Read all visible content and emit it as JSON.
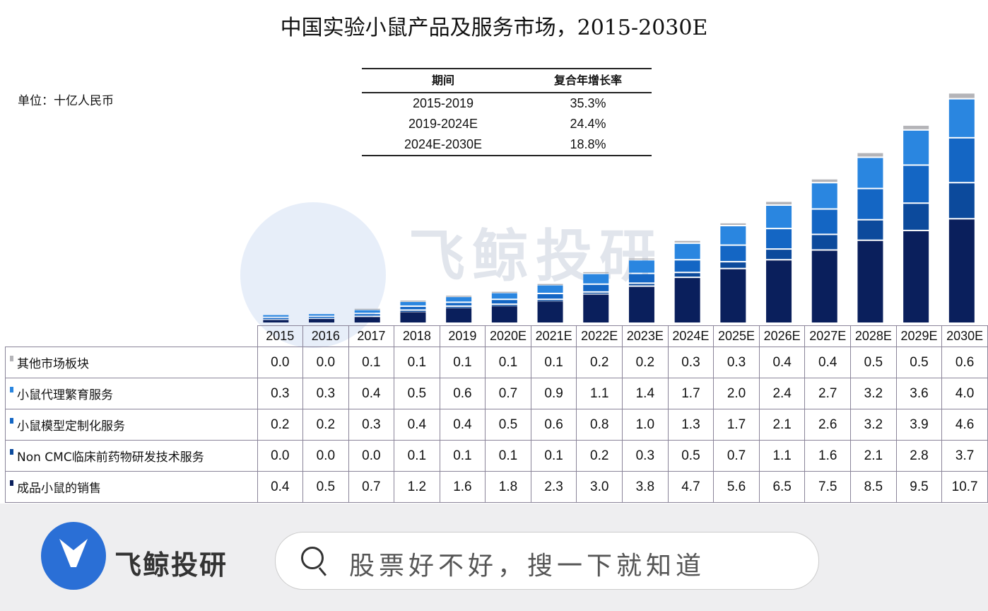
{
  "chart_data": {
    "type": "bar",
    "stacked": true,
    "title": "中国实验小鼠产品及服务市场，2015-2030E",
    "unit_label": "单位：十亿人民币",
    "categories": [
      "2015",
      "2016",
      "2017",
      "2018",
      "2019",
      "2020E",
      "2021E",
      "2022E",
      "2023E",
      "2024E",
      "2025E",
      "2026E",
      "2027E",
      "2028E",
      "2029E",
      "2030E"
    ],
    "series": [
      {
        "name": "其他市场板块",
        "color": "#b4b4b8",
        "values": [
          0.0,
          0.0,
          0.1,
          0.1,
          0.1,
          0.1,
          0.1,
          0.2,
          0.2,
          0.3,
          0.3,
          0.4,
          0.4,
          0.5,
          0.5,
          0.6
        ]
      },
      {
        "name": "小鼠代理繁育服务",
        "color": "#2a86e0",
        "values": [
          0.3,
          0.3,
          0.4,
          0.5,
          0.6,
          0.7,
          0.9,
          1.1,
          1.4,
          1.7,
          2.0,
          2.4,
          2.7,
          3.2,
          3.6,
          4.0
        ]
      },
      {
        "name": "小鼠模型定制化服务",
        "color": "#1466c4",
        "values": [
          0.2,
          0.2,
          0.3,
          0.4,
          0.4,
          0.5,
          0.6,
          0.8,
          1.0,
          1.3,
          1.7,
          2.1,
          2.6,
          3.2,
          3.9,
          4.6
        ]
      },
      {
        "name": "Non CMC临床前药物研发技术服务",
        "color": "#0c4a9c",
        "values": [
          0.0,
          0.0,
          0.0,
          0.1,
          0.1,
          0.1,
          0.1,
          0.2,
          0.3,
          0.5,
          0.7,
          1.1,
          1.6,
          2.1,
          2.8,
          3.7
        ]
      },
      {
        "name": "成品小鼠的销售",
        "color": "#0a1f5c",
        "values": [
          0.4,
          0.5,
          0.7,
          1.2,
          1.6,
          1.8,
          2.3,
          3.0,
          3.8,
          4.7,
          5.6,
          6.5,
          7.5,
          8.5,
          9.5,
          10.7
        ]
      }
    ],
    "legend_placement": "table-left",
    "grid": false
  },
  "cagr_table": {
    "headers": [
      "期间",
      "复合年增长率"
    ],
    "rows": [
      [
        "2015-2019",
        "35.3%"
      ],
      [
        "2019-2024E",
        "24.4%"
      ],
      [
        "2024E-2030E",
        "18.8%"
      ]
    ]
  },
  "watermark": {
    "text": "飞鲸投研"
  },
  "footer": {
    "brand": "飞鲸投研",
    "search_placeholder": "股票好不好，搜一下就知道",
    "search_icon": "search-icon",
    "brand_color": "#2a6fd6"
  }
}
